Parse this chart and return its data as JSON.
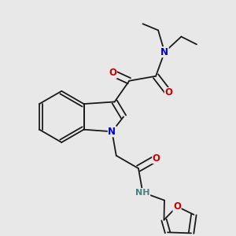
{
  "background_color": "#e8e8e8",
  "bond_color": "#1a1a1a",
  "atom_colors": {
    "N": "#0000cc",
    "O": "#cc0000",
    "NH_color": "#4a8080",
    "C": "#1a1a1a"
  },
  "font_size_atom": 8.5,
  "figsize": [
    3.0,
    3.0
  ],
  "dpi": 100
}
